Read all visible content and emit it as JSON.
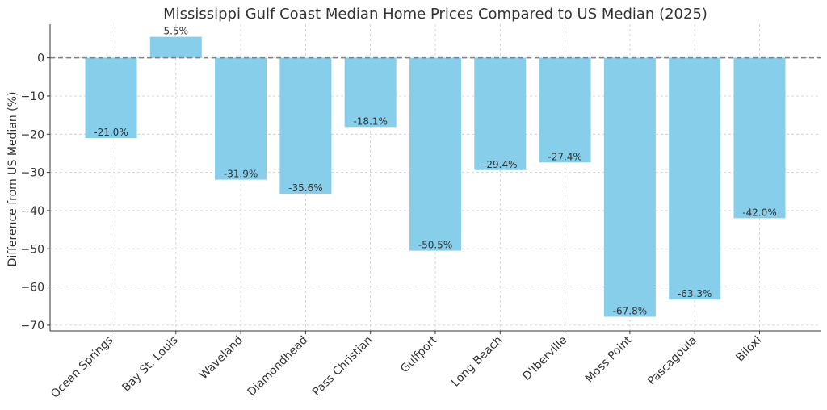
{
  "chart_data": {
    "type": "bar",
    "title": "Mississippi Gulf Coast Median Home Prices Compared to US Median (2025)",
    "xlabel": "",
    "ylabel": "Difference from US Median (%)",
    "ylim": [
      -71.5,
      8.8
    ],
    "yticks": [
      0,
      -10,
      -20,
      -30,
      -40,
      -50,
      -60,
      -70
    ],
    "yticklabels": [
      "0",
      "−10",
      "−20",
      "−30",
      "−40",
      "−50",
      "−60",
      "−70"
    ],
    "categories": [
      "Ocean Springs",
      "Bay St. Louis",
      "Waveland",
      "Diamondhead",
      "Pass Christian",
      "Gulfport",
      "Long Beach",
      "D'Iberville",
      "Moss Point",
      "Pascagoula",
      "Biloxi"
    ],
    "values": [
      -21.0,
      5.5,
      -31.9,
      -35.6,
      -18.1,
      -50.5,
      -29.4,
      -27.4,
      -67.8,
      -63.3,
      -42.0
    ],
    "data_labels": [
      "-21.0%",
      "5.5%",
      "-31.9%",
      "-35.6%",
      "-18.1%",
      "-50.5%",
      "-29.4%",
      "-27.4%",
      "-67.8%",
      "-63.3%",
      "-42.0%"
    ],
    "bar_color": "#87CEEB",
    "reference_line": {
      "value": 0,
      "color": "#808080",
      "style": "dashed"
    },
    "grid": true
  }
}
